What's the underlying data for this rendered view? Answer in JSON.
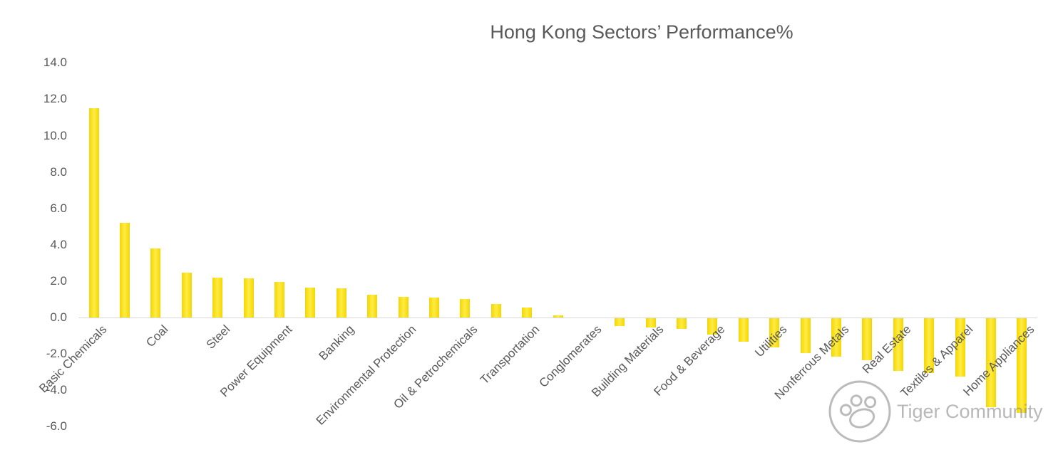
{
  "watermark": {
    "text": "Tiger Community"
  },
  "colors": {
    "bar": "#FFE205",
    "text": "#595959",
    "axis_line": "#D9D9D9",
    "watermark": "#8F8F8F",
    "background": "#FFFFFF"
  },
  "chart_data": {
    "type": "bar",
    "title": "Hong Kong Sectors’ Performance%",
    "xlabel": "",
    "ylabel": "",
    "ylim": [
      -6.0,
      14.0
    ],
    "yticks": [
      14.0,
      12.0,
      10.0,
      8.0,
      6.0,
      4.0,
      2.0,
      0.0,
      -2.0,
      -4.0,
      -6.0
    ],
    "grid": false,
    "legend": false,
    "bar_color": "#FFE205",
    "categories": [
      "Basic Chemicals",
      "",
      "Coal",
      "",
      "Steel",
      "",
      "Power Equipment",
      "",
      "Banking",
      "",
      "Environmental Protection",
      "",
      "Oil & Petrochemicals",
      "",
      "Transportation",
      "",
      "Conglomerates",
      "",
      "Building Materials",
      "",
      "Food & Beverage",
      "",
      "Utilities",
      "",
      "Nonferrous Metals",
      "",
      "Real Estate",
      "",
      "Textiles & Apparel",
      "",
      "Home Appliances"
    ],
    "values": [
      11.5,
      5.2,
      3.8,
      2.45,
      2.2,
      2.15,
      1.95,
      1.65,
      1.6,
      1.25,
      1.15,
      1.1,
      1.0,
      0.75,
      0.55,
      0.1,
      0.0,
      -0.45,
      -0.5,
      -0.6,
      -0.9,
      -1.3,
      -1.6,
      -1.9,
      -2.1,
      -2.3,
      -2.9,
      -3.0,
      -3.2,
      -4.9,
      -5.2
    ]
  }
}
